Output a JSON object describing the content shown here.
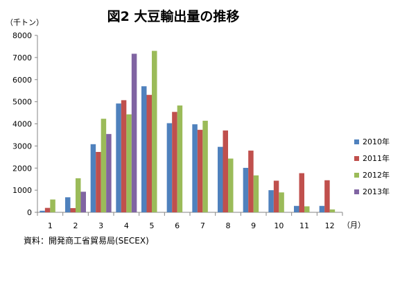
{
  "chart_data": {
    "type": "bar",
    "title": "図2  大豆輸出量の推移",
    "y_unit": "（千トン）",
    "x_unit": "（月）",
    "source": "資料：開発商工省貿易局(SECEX)",
    "categories": [
      "1",
      "2",
      "3",
      "4",
      "5",
      "6",
      "7",
      "8",
      "9",
      "10",
      "11",
      "12"
    ],
    "ylim": [
      0,
      8000
    ],
    "yticks": [
      0,
      1000,
      2000,
      3000,
      4000,
      5000,
      6000,
      7000,
      8000
    ],
    "grid": false,
    "legend_position": "right",
    "series": [
      {
        "name": "2010年",
        "color": "#4f81bd",
        "values": [
          70,
          680,
          3080,
          4920,
          5700,
          4030,
          3980,
          2960,
          2010,
          1000,
          290,
          290
        ]
      },
      {
        "name": "2011年",
        "color": "#c0504d",
        "values": [
          200,
          190,
          2730,
          5070,
          5310,
          4540,
          3730,
          3700,
          2790,
          1430,
          1770,
          1450
        ]
      },
      {
        "name": "2012年",
        "color": "#9bbb59",
        "values": [
          580,
          1540,
          4230,
          4430,
          7300,
          4830,
          4140,
          2430,
          1670,
          900,
          270,
          130
        ]
      },
      {
        "name": "2013年",
        "color": "#8064a2",
        "values": [
          null,
          930,
          3540,
          7170,
          null,
          null,
          null,
          null,
          null,
          null,
          null,
          null
        ]
      }
    ]
  }
}
